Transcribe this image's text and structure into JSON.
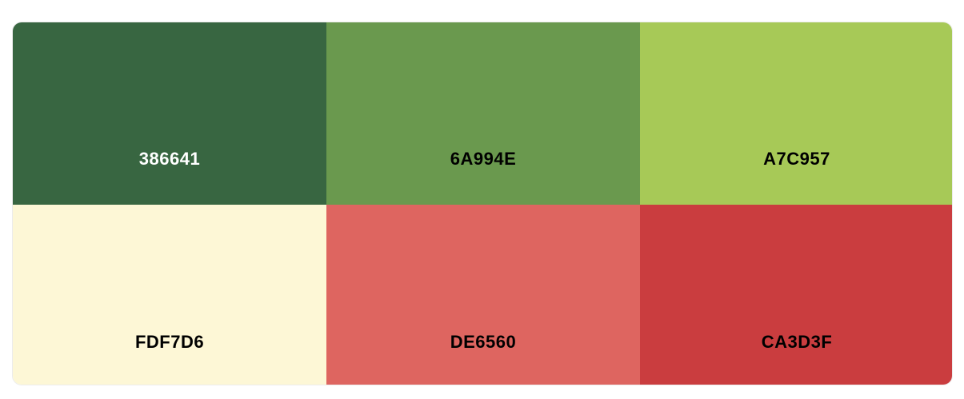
{
  "palette": {
    "colors": [
      {
        "hex": "386641",
        "bg": "#386641",
        "text": "#ffffff"
      },
      {
        "hex": "6A994E",
        "bg": "#6A994E",
        "text": "#000000"
      },
      {
        "hex": "A7C957",
        "bg": "#A7C957",
        "text": "#000000"
      },
      {
        "hex": "FDF7D6",
        "bg": "#FDF7D6",
        "text": "#000000"
      },
      {
        "hex": "DE6560",
        "bg": "#DE6560",
        "text": "#000000"
      },
      {
        "hex": "CA3D3F",
        "bg": "#CA3D3F",
        "text": "#000000"
      }
    ]
  }
}
